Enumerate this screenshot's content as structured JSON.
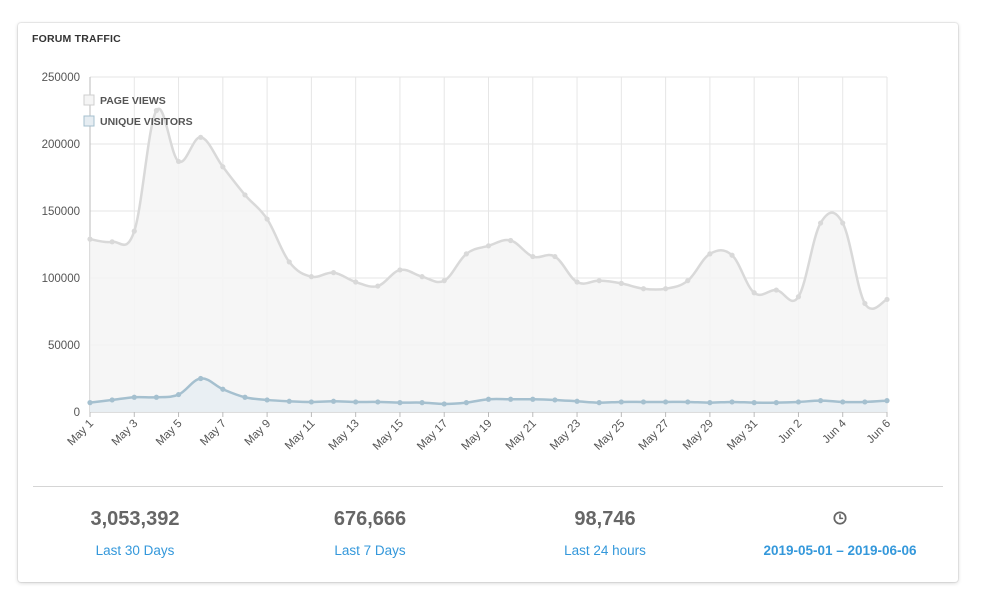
{
  "widget": {
    "title": "FORUM TRAFFIC"
  },
  "stats": [
    {
      "value": "3,053,392",
      "label": "Last 30 Days"
    },
    {
      "value": "676,666",
      "label": "Last 7 Days"
    },
    {
      "value": "98,746",
      "label": "Last 24 hours"
    },
    {
      "icon": "clock-icon",
      "label": "2019-05-01 – 2019-06-06"
    }
  ],
  "colors": {
    "page_views_line": "#d9d9d9",
    "page_views_fill": "#f5f5f5",
    "unique_visitors_line": "#a5c0cf",
    "unique_visitors_fill": "#e6edf2",
    "link": "#3498db"
  },
  "chart_data": {
    "type": "area",
    "legend": [
      "PAGE VIEWS",
      "UNIQUE VISITORS"
    ],
    "legend_position": "top-left",
    "grid": true,
    "ylim": [
      0,
      250000
    ],
    "y_ticks": [
      "0",
      "50000",
      "100000",
      "150000",
      "200000",
      "250000"
    ],
    "x_tick_labels": [
      "May 1",
      "May 3",
      "May 5",
      "May 7",
      "May 9",
      "May 11",
      "May 13",
      "May 15",
      "May 17",
      "May 19",
      "May 21",
      "May 23",
      "May 25",
      "May 27",
      "May 29",
      "May 31",
      "Jun 2",
      "Jun 4",
      "Jun 6"
    ],
    "x": [
      "May 1",
      "May 2",
      "May 3",
      "May 4",
      "May 5",
      "May 6",
      "May 7",
      "May 8",
      "May 9",
      "May 10",
      "May 11",
      "May 12",
      "May 13",
      "May 14",
      "May 15",
      "May 16",
      "May 17",
      "May 18",
      "May 19",
      "May 20",
      "May 21",
      "May 22",
      "May 23",
      "May 24",
      "May 25",
      "May 26",
      "May 27",
      "May 28",
      "May 29",
      "May 30",
      "May 31",
      "Jun 1",
      "Jun 2",
      "Jun 3",
      "Jun 4",
      "Jun 5",
      "Jun 6"
    ],
    "series": [
      {
        "name": "PAGE VIEWS",
        "values": [
          129000,
          127000,
          135000,
          225000,
          187000,
          205000,
          183000,
          162000,
          144000,
          112000,
          101000,
          104000,
          97000,
          94000,
          106000,
          101000,
          98000,
          118000,
          124000,
          128000,
          116000,
          116000,
          97000,
          98000,
          96000,
          92000,
          92000,
          98000,
          118000,
          117000,
          89000,
          91000,
          86000,
          141000,
          141000,
          81000,
          84000
        ]
      },
      {
        "name": "UNIQUE VISITORS",
        "values": [
          7000,
          9000,
          11000,
          11000,
          13000,
          25000,
          17000,
          11000,
          9000,
          8000,
          7500,
          8000,
          7500,
          7500,
          7000,
          7000,
          6000,
          7000,
          9500,
          9500,
          9500,
          9000,
          8000,
          7000,
          7500,
          7500,
          7500,
          7500,
          7000,
          7500,
          7000,
          7000,
          7500,
          8500,
          7500,
          7500,
          8500
        ]
      }
    ]
  }
}
